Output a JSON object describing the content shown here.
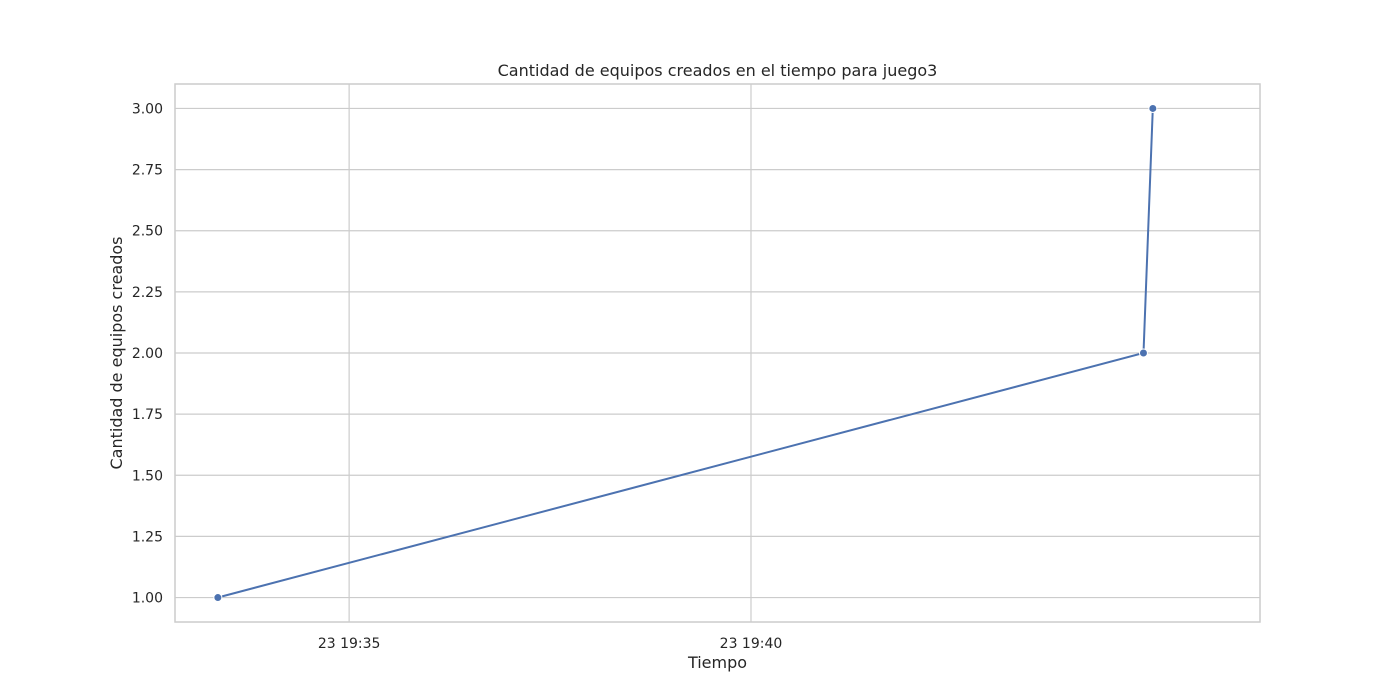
{
  "chart_data": {
    "type": "line",
    "title": "Cantidad de equipos creados en el tiempo para juego3",
    "xlabel": "Tiempo",
    "ylabel": "Cantidad de equipos creados",
    "x": [
      "23 19:33:22",
      "23 19:44:53",
      "23 19:45:00"
    ],
    "series": [
      {
        "values": [
          1,
          2,
          3
        ],
        "color": "#4c72b0"
      }
    ],
    "x_ticks": [
      {
        "value": "23 19:35:00",
        "label": "23 19:35"
      },
      {
        "value": "23 19:40:00",
        "label": "23 19:40"
      }
    ],
    "xlim": [
      "23 19:32:50",
      "23 19:46:20"
    ],
    "y_ticks": [
      1.0,
      1.25,
      1.5,
      1.75,
      2.0,
      2.25,
      2.5,
      2.75,
      3.0
    ],
    "y_tick_labels": [
      "1.00",
      "1.25",
      "1.50",
      "1.75",
      "2.00",
      "2.25",
      "2.50",
      "2.75",
      "3.00"
    ],
    "ylim": [
      0.9,
      3.1
    ],
    "grid": true,
    "legend": "none"
  }
}
